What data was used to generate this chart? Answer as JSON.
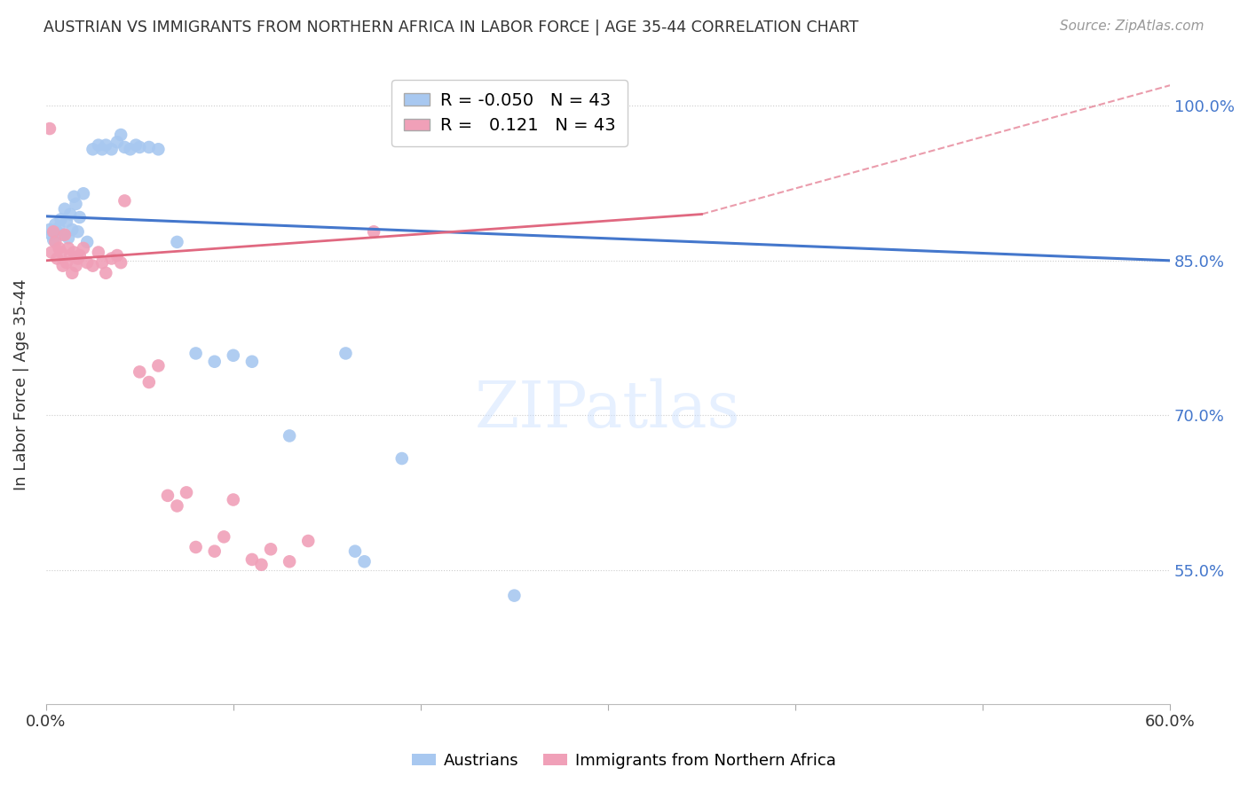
{
  "title": "AUSTRIAN VS IMMIGRANTS FROM NORTHERN AFRICA IN LABOR FORCE | AGE 35-44 CORRELATION CHART",
  "source": "Source: ZipAtlas.com",
  "ylabel": "In Labor Force | Age 35-44",
  "xlim": [
    0.0,
    0.6
  ],
  "ylim": [
    0.42,
    1.04
  ],
  "ytick_labels": [
    "55.0%",
    "70.0%",
    "85.0%",
    "100.0%"
  ],
  "ytick_values": [
    0.55,
    0.7,
    0.85,
    1.0
  ],
  "xtick_labels": [
    "0.0%",
    "",
    "",
    "",
    "",
    "",
    "60.0%"
  ],
  "xtick_values": [
    0.0,
    0.1,
    0.2,
    0.3,
    0.4,
    0.5,
    0.6
  ],
  "legend_bottom": [
    "Austrians",
    "Immigrants from Northern Africa"
  ],
  "r_blue": -0.05,
  "n_blue": 43,
  "r_pink": 0.121,
  "n_pink": 43,
  "blue_color": "#A8C8F0",
  "pink_color": "#F0A0B8",
  "blue_line_color": "#4477CC",
  "pink_line_color": "#E06880",
  "blue_scatter": [
    [
      0.002,
      0.88
    ],
    [
      0.003,
      0.875
    ],
    [
      0.004,
      0.87
    ],
    [
      0.005,
      0.885
    ],
    [
      0.006,
      0.878
    ],
    [
      0.007,
      0.882
    ],
    [
      0.008,
      0.89
    ],
    [
      0.009,
      0.875
    ],
    [
      0.01,
      0.9
    ],
    [
      0.011,
      0.888
    ],
    [
      0.012,
      0.872
    ],
    [
      0.013,
      0.895
    ],
    [
      0.014,
      0.88
    ],
    [
      0.015,
      0.912
    ],
    [
      0.016,
      0.905
    ],
    [
      0.017,
      0.878
    ],
    [
      0.018,
      0.892
    ],
    [
      0.02,
      0.915
    ],
    [
      0.022,
      0.868
    ],
    [
      0.025,
      0.958
    ],
    [
      0.028,
      0.962
    ],
    [
      0.03,
      0.958
    ],
    [
      0.032,
      0.962
    ],
    [
      0.035,
      0.958
    ],
    [
      0.038,
      0.965
    ],
    [
      0.04,
      0.972
    ],
    [
      0.042,
      0.96
    ],
    [
      0.045,
      0.958
    ],
    [
      0.048,
      0.962
    ],
    [
      0.05,
      0.96
    ],
    [
      0.055,
      0.96
    ],
    [
      0.06,
      0.958
    ],
    [
      0.07,
      0.868
    ],
    [
      0.08,
      0.76
    ],
    [
      0.09,
      0.752
    ],
    [
      0.1,
      0.758
    ],
    [
      0.11,
      0.752
    ],
    [
      0.13,
      0.68
    ],
    [
      0.16,
      0.76
    ],
    [
      0.165,
      0.568
    ],
    [
      0.17,
      0.558
    ],
    [
      0.19,
      0.658
    ],
    [
      0.25,
      0.525
    ]
  ],
  "pink_scatter": [
    [
      0.002,
      0.978
    ],
    [
      0.003,
      0.858
    ],
    [
      0.004,
      0.878
    ],
    [
      0.005,
      0.868
    ],
    [
      0.006,
      0.852
    ],
    [
      0.007,
      0.862
    ],
    [
      0.008,
      0.858
    ],
    [
      0.009,
      0.845
    ],
    [
      0.01,
      0.875
    ],
    [
      0.011,
      0.848
    ],
    [
      0.012,
      0.862
    ],
    [
      0.013,
      0.855
    ],
    [
      0.014,
      0.838
    ],
    [
      0.015,
      0.858
    ],
    [
      0.016,
      0.845
    ],
    [
      0.017,
      0.852
    ],
    [
      0.018,
      0.855
    ],
    [
      0.02,
      0.862
    ],
    [
      0.022,
      0.848
    ],
    [
      0.025,
      0.845
    ],
    [
      0.028,
      0.858
    ],
    [
      0.03,
      0.848
    ],
    [
      0.032,
      0.838
    ],
    [
      0.035,
      0.852
    ],
    [
      0.038,
      0.855
    ],
    [
      0.04,
      0.848
    ],
    [
      0.042,
      0.908
    ],
    [
      0.05,
      0.742
    ],
    [
      0.055,
      0.732
    ],
    [
      0.06,
      0.748
    ],
    [
      0.065,
      0.622
    ],
    [
      0.07,
      0.612
    ],
    [
      0.075,
      0.625
    ],
    [
      0.08,
      0.572
    ],
    [
      0.09,
      0.568
    ],
    [
      0.095,
      0.582
    ],
    [
      0.1,
      0.618
    ],
    [
      0.11,
      0.56
    ],
    [
      0.115,
      0.555
    ],
    [
      0.12,
      0.57
    ],
    [
      0.13,
      0.558
    ],
    [
      0.14,
      0.578
    ],
    [
      0.175,
      0.878
    ]
  ],
  "background_color": "#FFFFFF",
  "grid_color": "#CCCCCC"
}
